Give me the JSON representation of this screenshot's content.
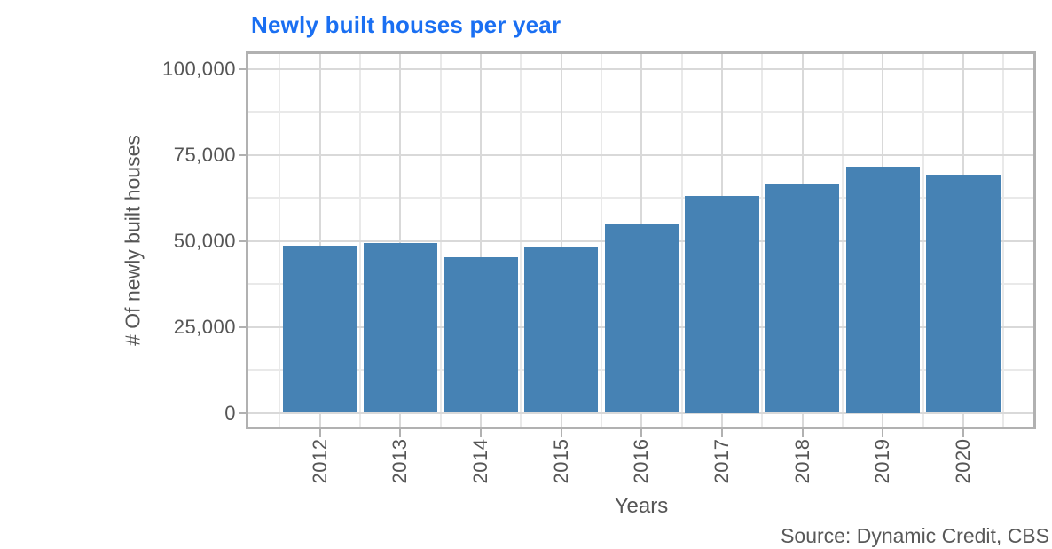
{
  "title": {
    "text": "Newly built houses per year"
  },
  "source": {
    "text": "Source: Dynamic Credit, CBS"
  },
  "colors": {
    "title": "#1a6ff2",
    "bar": "#4682b4",
    "axis_text": "#555555",
    "source_text": "#595959",
    "grid_major": "#d9d9d9",
    "grid_minor": "#e9e9e9",
    "panel_border": "#b1b1b1",
    "tick": "#b1b1b1",
    "background": "#ffffff"
  },
  "chart_data": {
    "type": "bar",
    "title": "Newly built houses per year",
    "categories": [
      "2012",
      "2013",
      "2014",
      "2015",
      "2016",
      "2017",
      "2018",
      "2019",
      "2020"
    ],
    "values": [
      48700,
      49300,
      45200,
      48400,
      54900,
      63000,
      66600,
      71500,
      69400
    ],
    "xlabel": "Years",
    "ylabel": "# Of newly built houses",
    "ylim": [
      0,
      100000
    ],
    "yticks": [
      0,
      25000,
      50000,
      75000,
      100000
    ],
    "ytick_labels": [
      "0",
      "25,000",
      "50,000",
      "75,000",
      "100,000"
    ],
    "yminor_step": 12500,
    "grid": "major+minor",
    "legend": "none",
    "bar_color": "#4682b4",
    "source": "Source: Dynamic Credit, CBS"
  }
}
